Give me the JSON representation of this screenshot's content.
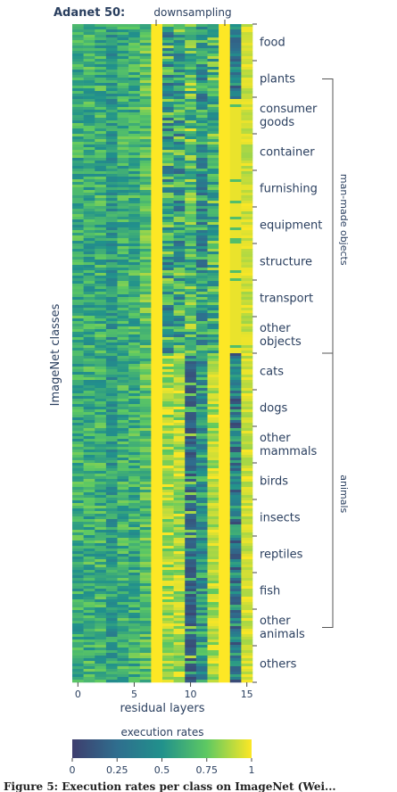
{
  "chart_data": {
    "type": "heatmap",
    "title": "Adanet 50:",
    "annotation": "downsampling",
    "xlabel": "residual layers",
    "ylabel": "ImageNet classes",
    "x_ticks": [
      0,
      5,
      10,
      15
    ],
    "x_range": [
      0,
      15
    ],
    "downsampling_layers": [
      7,
      13
    ],
    "colorbar": {
      "title": "execution rates",
      "ticks": [
        "0",
        "0.25",
        "0.5",
        "0.75",
        "1"
      ],
      "range": [
        0,
        1
      ],
      "colors": [
        "#3e3e6e",
        "#2f6e8e",
        "#21918c",
        "#5ec962",
        "#fde725"
      ]
    },
    "category_labels": [
      "food",
      "plants",
      "consumer goods",
      "container",
      "furnishing",
      "equipment",
      "structure",
      "transport",
      "other objects",
      "cats",
      "dogs",
      "other mammals",
      "birds",
      "insects",
      "reptiles",
      "fish",
      "other animals",
      "others"
    ],
    "groups": [
      "man-made objects",
      "animals"
    ],
    "caption": "Figure 5: Execution rates per class on ImageNet (Wei..."
  }
}
